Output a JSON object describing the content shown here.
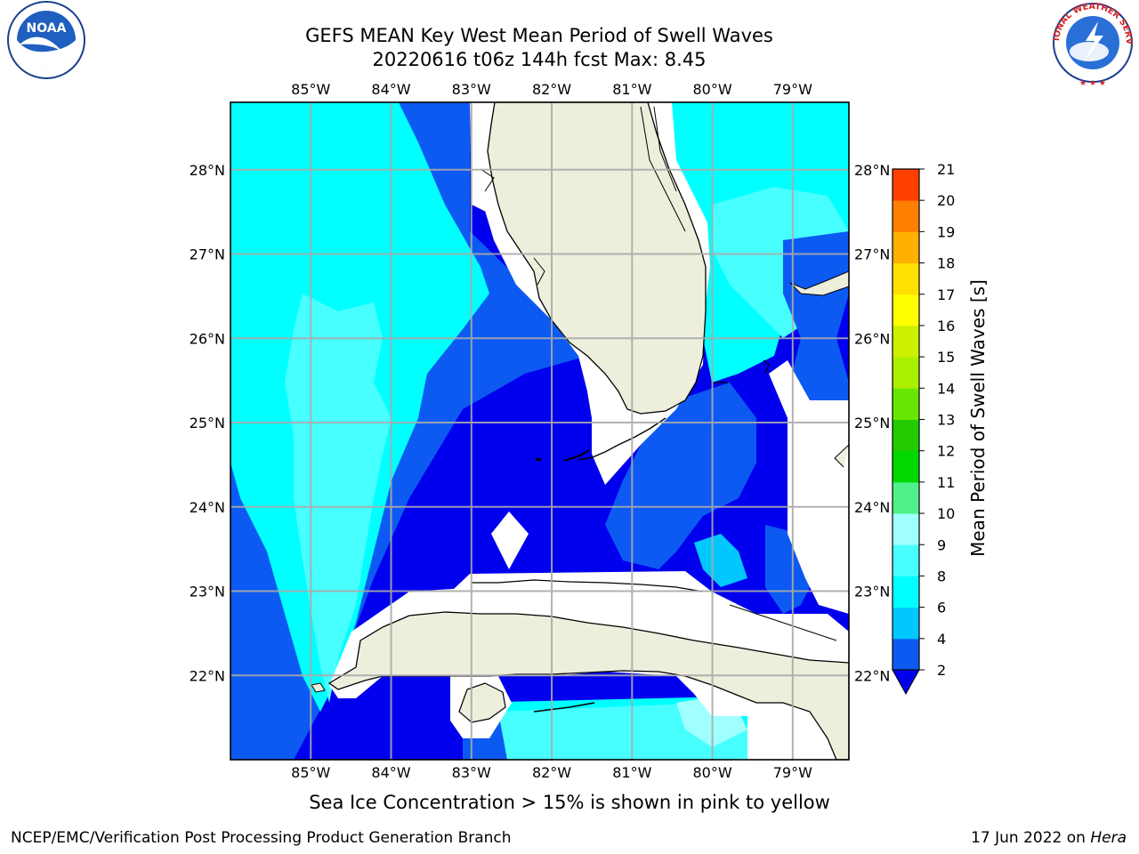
{
  "title": {
    "line1": "GEFS MEAN Key West Mean Period of Swell Waves",
    "line2": "20220616 t06z 144h fcst   Max: 8.45"
  },
  "map": {
    "longitude_labels": [
      "85°W",
      "84°W",
      "83°W",
      "82°W",
      "81°W",
      "80°W",
      "79°W"
    ],
    "latitude_labels": [
      "28°N",
      "27°N",
      "26°N",
      "25°N",
      "24°N",
      "23°N",
      "22°N"
    ],
    "longitudes": [
      -85,
      -84,
      -83,
      -82,
      -81,
      -80,
      -79
    ],
    "latitudes": [
      28,
      27,
      26,
      25,
      24,
      23,
      22
    ],
    "lon_range": [
      -86,
      -78.3
    ],
    "lat_range": [
      21,
      28.8
    ],
    "gridlines": true,
    "land_color": "#eeeedd",
    "no_data_color": "#ffffff"
  },
  "colorbar": {
    "label": "Mean Period of Swell Waves [s]",
    "ticks": [
      "2",
      "4",
      "6",
      "8",
      "9",
      "10",
      "11",
      "12",
      "13",
      "14",
      "15",
      "16",
      "17",
      "18",
      "19",
      "20",
      "21"
    ],
    "colors": [
      "#0c5af2",
      "#00c8ff",
      "#00ffff",
      "#48ffff",
      "#a0ffff",
      "#50f08a",
      "#00d800",
      "#22cc00",
      "#66e600",
      "#aaee00",
      "#ccf000",
      "#ffff00",
      "#ffe000",
      "#ffb000",
      "#ff8000",
      "#ff4000",
      "#ff0000"
    ],
    "under_color": "#0000ee"
  },
  "logos": {
    "noaa": "NOAA",
    "nws": "NATIONAL WEATHER SERVICE"
  },
  "caption": "Sea Ice Concentration > 15% is shown in pink to yellow",
  "footer": {
    "left": "NCEP/EMC/Verification Post Processing Product Generation Branch",
    "date": "17 Jun 2022 on ",
    "host": "Hera"
  }
}
